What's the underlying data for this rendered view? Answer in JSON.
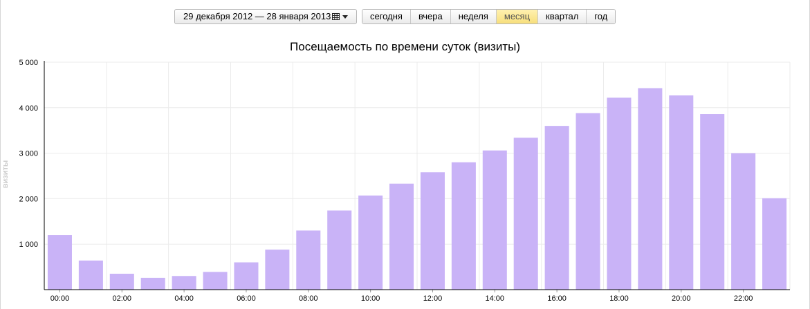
{
  "toolbar": {
    "date_range": "29 декабря 2012 — 28 января 2013",
    "periods": [
      "сегодня",
      "вчера",
      "неделя",
      "месяц",
      "квартал",
      "год"
    ],
    "active_period": "месяц"
  },
  "colors": {
    "bar": "#c9b3f7",
    "grid": "#ebebeb",
    "axis": "#000000",
    "active_tab": "#f7df7c"
  },
  "chart_data": {
    "type": "bar",
    "title": "Посещаемость по времени суток (визиты)",
    "ylabel": "визиты",
    "xlabel": "",
    "x_tick_labels": [
      "00:00",
      "02:00",
      "04:00",
      "06:00",
      "08:00",
      "10:00",
      "12:00",
      "14:00",
      "16:00",
      "18:00",
      "20:00",
      "22:00"
    ],
    "y_tick_labels": [
      "1 000",
      "2 000",
      "3 000",
      "4 000",
      "5 000"
    ],
    "y_ticks": [
      1000,
      2000,
      3000,
      4000,
      5000
    ],
    "ylim": [
      0,
      5000
    ],
    "grid": true,
    "legend": "none",
    "series": [
      {
        "values": [
          1200,
          640,
          350,
          260,
          300,
          390,
          600,
          880,
          1300,
          1740,
          2070,
          2330,
          2580,
          2800,
          3060,
          3340,
          3600,
          3880,
          4220,
          4430,
          4270,
          3860,
          3000,
          2010
        ]
      }
    ]
  }
}
